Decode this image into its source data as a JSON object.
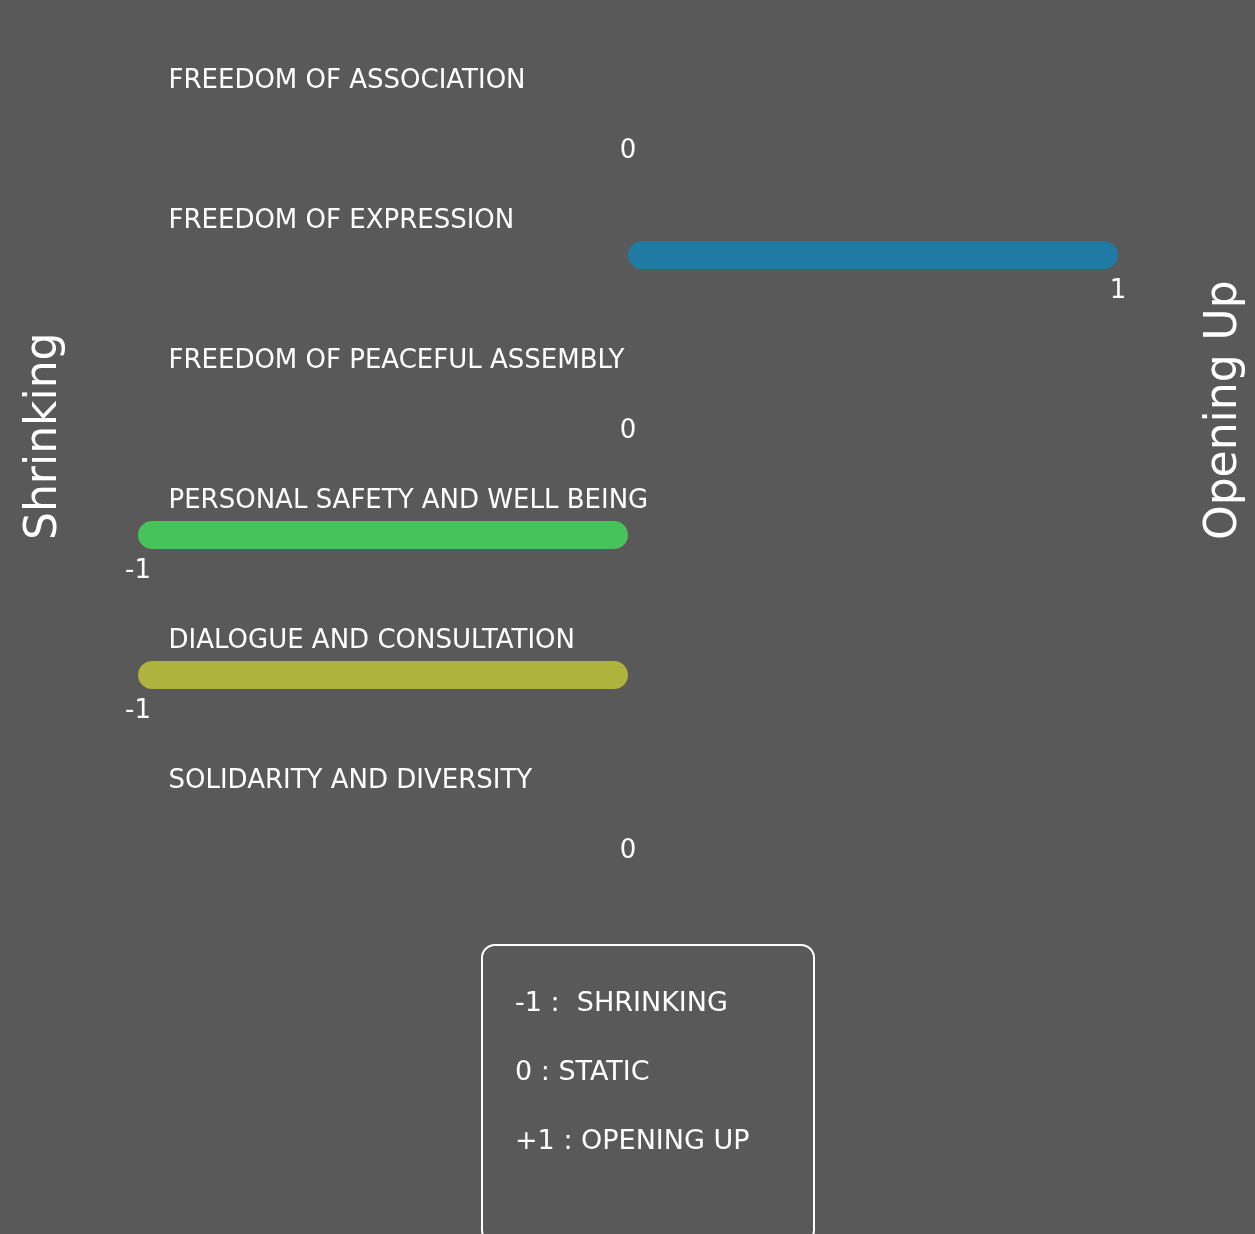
{
  "chart_data": {
    "type": "bar",
    "orientation": "horizontal",
    "categories": [
      "FREEDOM OF ASSOCIATION",
      "FREEDOM OF EXPRESSION",
      "FREEDOM OF PEACEFUL ASSEMBLY",
      "PERSONAL SAFETY AND WELL BEING",
      "DIALOGUE AND CONSULTATION",
      "SOLIDARITY AND DIVERSITY"
    ],
    "values": [
      0,
      1,
      0,
      -1,
      -1,
      0
    ],
    "colors": [
      "#11919e",
      "#1f7ba4",
      "#9c4fb8",
      "#46c35a",
      "#adb33c",
      "#d88a28"
    ],
    "xlim": [
      -1,
      1
    ],
    "data_labels": true,
    "annotations": [
      "Shrinking",
      "Opening Up",
      "-1 :  SHRINKING",
      "0 : STATIC",
      "+1 : OPENING UP"
    ]
  }
}
